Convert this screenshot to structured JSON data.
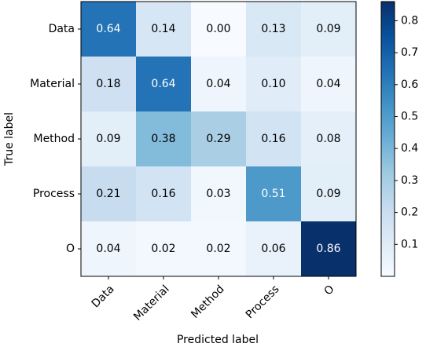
{
  "chart_data": {
    "type": "heatmap",
    "x_label": "Predicted label",
    "y_label": "True label",
    "x_categories": [
      "Data",
      "Material",
      "Method",
      "Process",
      "O"
    ],
    "y_categories": [
      "Data",
      "Material",
      "Method",
      "Process",
      "O"
    ],
    "values": [
      [
        0.64,
        0.14,
        0.0,
        0.13,
        0.09
      ],
      [
        0.18,
        0.64,
        0.04,
        0.1,
        0.04
      ],
      [
        0.09,
        0.38,
        0.29,
        0.16,
        0.08
      ],
      [
        0.21,
        0.16,
        0.03,
        0.51,
        0.09
      ],
      [
        0.04,
        0.02,
        0.02,
        0.06,
        0.86
      ]
    ],
    "value_labels": [
      [
        "0.64",
        "0.14",
        "0.00",
        "0.13",
        "0.09"
      ],
      [
        "0.18",
        "0.64",
        "0.04",
        "0.10",
        "0.04"
      ],
      [
        "0.09",
        "0.38",
        "0.29",
        "0.16",
        "0.08"
      ],
      [
        "0.21",
        "0.16",
        "0.03",
        "0.51",
        "0.09"
      ],
      [
        "0.04",
        "0.02",
        "0.02",
        "0.06",
        "0.86"
      ]
    ],
    "colormap": "Blues",
    "zlim": [
      0,
      0.86
    ],
    "zticks": [
      0.1,
      0.2,
      0.3,
      0.4,
      0.5,
      0.6,
      0.7,
      0.8
    ]
  }
}
